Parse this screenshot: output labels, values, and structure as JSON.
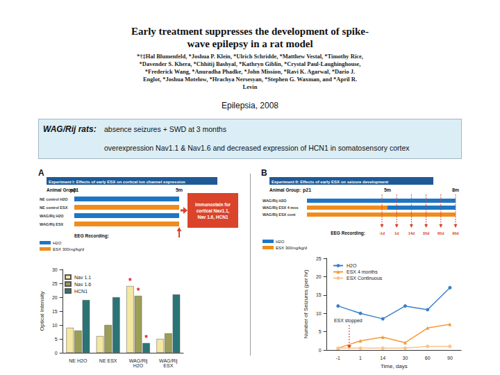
{
  "header": {
    "title": "Early treatment suppresses the development of spike-wave epilepsy in a rat model",
    "authors": "*†‡Hal Blumenfeld, *Joshua P. Klein, *Ulrich Schridde, *Matthew Vestal, *Timothy Rice, *Davender S. Khera, *Chhitij Bashyal, *Kathryn Giblin, *Crystal Paul-Laughinghouse, *Frederick Wang, *Anuradha Phadke, *John Mission, *Ravi K. Agarwal, *Dario J. Englot, *Joshua Motelow, *Hrachya Nersesyan, *Stephen G. Waxman, and *April R. Levin",
    "journal": "Epilepsia, 2008"
  },
  "summary": {
    "label": "WAG/Rij rats:",
    "lines": [
      "absence seizures + SWD at 3 months",
      "overexpression Nav1.1 & Nav1.6 and decreased expression of HCN1 in somatosensory cortex"
    ]
  },
  "experiments": [
    {
      "panel": "A",
      "title": "Experiment I: Effects of early ESX on cortical ion channel expression",
      "group_label": "Animal Group:",
      "timepoints": [
        "p21",
        "5m"
      ],
      "treatments": [
        {
          "name": "H2O",
          "color": "#1f75c4"
        },
        {
          "name": "ESX 300mg/kg/d",
          "color": "#f08c1c"
        }
      ],
      "groups": [
        {
          "name": "NE control H2O",
          "segments": [
            "H2O"
          ]
        },
        {
          "name": "NE control ESX",
          "segments": [
            "ESX 300mg/kg/d"
          ]
        },
        {
          "name": "WAG/Rij H2O",
          "segments": [
            "H2O"
          ]
        },
        {
          "name": "WAG/Rij ESX",
          "segments": [
            "ESX 300mg/kg/d"
          ]
        }
      ],
      "outcome": "Immunostain for cortical Nav1.1, Nav 1.6, HCN1",
      "recording_label": "EEG Recording:",
      "recordings": []
    },
    {
      "panel": "B",
      "title": "Experiment II: Effects of early ESX on seizure development",
      "group_label": "Animal Group:",
      "timepoints": [
        "p21",
        "5m",
        "8m"
      ],
      "treatments": [
        {
          "name": "H2O",
          "color": "#1f75c4"
        },
        {
          "name": "ESX 300mg/kg/d",
          "color": "#f08c1c"
        }
      ],
      "groups": [
        {
          "name": "WAG/Rij H2O",
          "segments": [
            "H2O",
            "H2O"
          ]
        },
        {
          "name": "WAG/Rij ESX 4 mos",
          "segments": [
            "ESX 300mg/kg/d",
            "H2O"
          ]
        },
        {
          "name": "WAG/Rij ESX cont",
          "segments": [
            "ESX 300mg/kg/d",
            "ESX 300mg/kg/d"
          ]
        }
      ],
      "recording_label": "EEG Recording:",
      "recordings": [
        "-1d",
        "1d",
        "14d",
        "30d",
        "60d",
        "90d"
      ]
    }
  ],
  "chart_data": [
    {
      "type": "bar",
      "y_label": "Optical Intensity",
      "categories": [
        "NE H2O",
        "NE ESX",
        "WAG/Rij H2O",
        "WAG/Rij ESX"
      ],
      "series": [
        {
          "name": "Nav 1.1",
          "color": "#f3e7a1",
          "values": [
            9,
            6,
            24,
            5
          ]
        },
        {
          "name": "Nav 1.6",
          "color": "#9c9e55",
          "values": [
            8,
            10,
            20.5,
            7
          ]
        },
        {
          "name": "HCN1",
          "color": "#2b7475",
          "values": [
            19,
            20,
            3.5,
            21
          ]
        }
      ],
      "ylim": [
        0,
        30
      ],
      "yticks": [
        0,
        5,
        10,
        15,
        20,
        25,
        30
      ],
      "grid": false,
      "legend": "top-left",
      "annotations": [
        {
          "text": "*",
          "category": "WAG/Rij H2O",
          "series": "Nav 1.1"
        },
        {
          "text": "*",
          "category": "WAG/Rij H2O",
          "series": "Nav 1.6"
        },
        {
          "text": "*",
          "category": "WAG/Rij H2O",
          "series": "HCN1"
        }
      ]
    },
    {
      "type": "line",
      "x_label": "Time, days",
      "y_label": "Number of Seizures (per hr)",
      "categories": [
        "-1",
        "1",
        "14",
        "30",
        "60",
        "90"
      ],
      "series": [
        {
          "name": "H2O",
          "color": "#3a80c8",
          "marker": "circle",
          "values": [
            12,
            10,
            8.5,
            12,
            11,
            17
          ]
        },
        {
          "name": "ESX 4 months",
          "color": "#f39a3a",
          "marker": "triangle",
          "values": [
            0.5,
            2.5,
            3.5,
            2,
            6,
            7
          ]
        },
        {
          "name": "ESX Continuous",
          "color": "#f7c48e",
          "marker": "circle",
          "values": [
            0.5,
            0.5,
            0.5,
            0.5,
            1,
            1
          ]
        }
      ],
      "ylim": [
        0,
        25
      ],
      "yticks": [
        0,
        5,
        10,
        15,
        20,
        25
      ],
      "grid": false,
      "legend": "top-left",
      "annotations": [
        {
          "text": "ESX stopped",
          "between": [
            "-1",
            "1"
          ]
        }
      ]
    }
  ]
}
